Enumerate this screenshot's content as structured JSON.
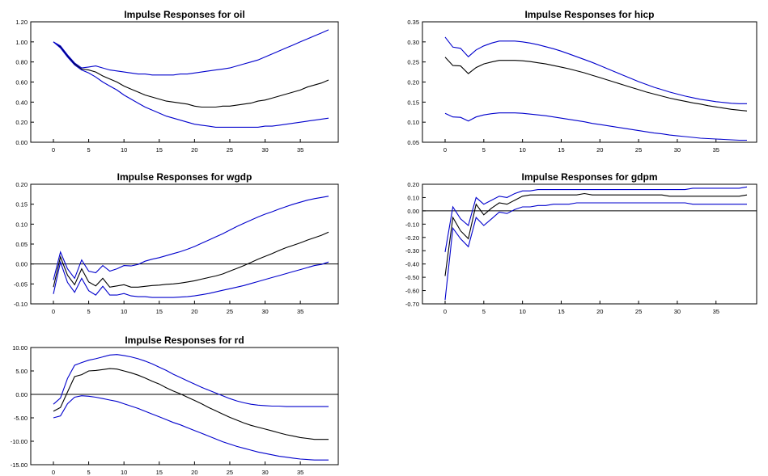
{
  "colors": {
    "point": "#000000",
    "band": "#0000cc",
    "axis": "#000000",
    "zero_line": "#000000"
  },
  "chart_data": [
    {
      "type": "line",
      "title": "Impulse Responses for oil",
      "ylim": [
        0.0,
        1.2
      ],
      "yticks": [
        "0.00",
        "0.20",
        "0.40",
        "0.60",
        "0.80",
        "1.00",
        "1.20"
      ],
      "xlim": [
        0,
        39
      ],
      "xticks": [
        "0",
        "5",
        "10",
        "15",
        "20",
        "25",
        "30",
        "35"
      ],
      "zero_line": false,
      "series": [
        {
          "role": "point",
          "values": [
            1.0,
            0.95,
            0.86,
            0.78,
            0.73,
            0.72,
            0.7,
            0.66,
            0.63,
            0.6,
            0.56,
            0.53,
            0.5,
            0.47,
            0.45,
            0.43,
            0.41,
            0.4,
            0.39,
            0.38,
            0.36,
            0.35,
            0.35,
            0.35,
            0.36,
            0.36,
            0.37,
            0.38,
            0.39,
            0.41,
            0.42,
            0.44,
            0.46,
            0.48,
            0.5,
            0.52,
            0.55,
            0.57,
            0.59,
            0.62
          ]
        },
        {
          "role": "upper",
          "values": [
            1.0,
            0.96,
            0.87,
            0.79,
            0.74,
            0.75,
            0.76,
            0.74,
            0.72,
            0.71,
            0.7,
            0.69,
            0.68,
            0.68,
            0.67,
            0.67,
            0.67,
            0.67,
            0.68,
            0.68,
            0.69,
            0.7,
            0.71,
            0.72,
            0.73,
            0.74,
            0.76,
            0.78,
            0.8,
            0.82,
            0.85,
            0.88,
            0.91,
            0.94,
            0.97,
            1.0,
            1.03,
            1.06,
            1.09,
            1.12
          ]
        },
        {
          "role": "lower",
          "values": [
            1.0,
            0.94,
            0.85,
            0.77,
            0.72,
            0.69,
            0.65,
            0.6,
            0.56,
            0.52,
            0.47,
            0.43,
            0.39,
            0.35,
            0.32,
            0.29,
            0.26,
            0.24,
            0.22,
            0.2,
            0.18,
            0.17,
            0.16,
            0.15,
            0.15,
            0.15,
            0.15,
            0.15,
            0.15,
            0.15,
            0.16,
            0.16,
            0.17,
            0.18,
            0.19,
            0.2,
            0.21,
            0.22,
            0.23,
            0.24
          ]
        }
      ]
    },
    {
      "type": "line",
      "title": "Impulse Responses for hicp",
      "ylim": [
        0.05,
        0.35
      ],
      "yticks": [
        "0.05",
        "0.10",
        "0.15",
        "0.20",
        "0.25",
        "0.30",
        "0.35"
      ],
      "xlim": [
        0,
        39
      ],
      "xticks": [
        "0",
        "5",
        "10",
        "15",
        "20",
        "25",
        "30",
        "35"
      ],
      "zero_line": false,
      "series": [
        {
          "role": "point",
          "values": [
            0.262,
            0.241,
            0.24,
            0.221,
            0.236,
            0.245,
            0.25,
            0.254,
            0.254,
            0.254,
            0.253,
            0.251,
            0.248,
            0.245,
            0.241,
            0.237,
            0.233,
            0.228,
            0.223,
            0.217,
            0.211,
            0.205,
            0.199,
            0.193,
            0.187,
            0.181,
            0.175,
            0.17,
            0.165,
            0.16,
            0.156,
            0.152,
            0.148,
            0.145,
            0.141,
            0.138,
            0.135,
            0.132,
            0.13,
            0.128
          ]
        },
        {
          "role": "upper",
          "values": [
            0.312,
            0.287,
            0.284,
            0.263,
            0.28,
            0.29,
            0.297,
            0.302,
            0.302,
            0.302,
            0.3,
            0.297,
            0.293,
            0.288,
            0.283,
            0.277,
            0.27,
            0.263,
            0.256,
            0.249,
            0.241,
            0.233,
            0.225,
            0.217,
            0.209,
            0.201,
            0.194,
            0.187,
            0.181,
            0.175,
            0.17,
            0.165,
            0.161,
            0.157,
            0.154,
            0.151,
            0.149,
            0.147,
            0.146,
            0.146
          ]
        },
        {
          "role": "lower",
          "values": [
            0.122,
            0.113,
            0.112,
            0.103,
            0.113,
            0.118,
            0.121,
            0.123,
            0.123,
            0.123,
            0.122,
            0.12,
            0.118,
            0.116,
            0.113,
            0.11,
            0.107,
            0.104,
            0.101,
            0.097,
            0.094,
            0.091,
            0.088,
            0.085,
            0.082,
            0.079,
            0.076,
            0.073,
            0.071,
            0.068,
            0.066,
            0.064,
            0.062,
            0.06,
            0.059,
            0.058,
            0.057,
            0.056,
            0.055,
            0.055
          ]
        }
      ]
    },
    {
      "type": "line",
      "title": "Impulse Responses for wgdp",
      "ylim": [
        -0.1,
        0.2
      ],
      "yticks": [
        "-0.10",
        "-0.05",
        "0.00",
        "0.05",
        "0.10",
        "0.15",
        "0.20"
      ],
      "xlim": [
        0,
        39
      ],
      "xticks": [
        "0",
        "5",
        "10",
        "15",
        "20",
        "25",
        "30",
        "35"
      ],
      "zero_line": true,
      "series": [
        {
          "role": "point",
          "values": [
            -0.058,
            0.018,
            -0.028,
            -0.052,
            -0.012,
            -0.045,
            -0.055,
            -0.036,
            -0.058,
            -0.055,
            -0.052,
            -0.058,
            -0.058,
            -0.056,
            -0.054,
            -0.053,
            -0.051,
            -0.05,
            -0.048,
            -0.045,
            -0.042,
            -0.038,
            -0.034,
            -0.03,
            -0.025,
            -0.018,
            -0.011,
            -0.004,
            0.004,
            0.012,
            0.019,
            0.026,
            0.034,
            0.041,
            0.047,
            0.053,
            0.06,
            0.066,
            0.072,
            0.08
          ]
        },
        {
          "role": "upper",
          "values": [
            -0.04,
            0.03,
            -0.012,
            -0.036,
            0.01,
            -0.018,
            -0.022,
            -0.004,
            -0.018,
            -0.012,
            -0.004,
            -0.005,
            -0.001,
            0.007,
            0.012,
            0.016,
            0.021,
            0.026,
            0.031,
            0.037,
            0.044,
            0.052,
            0.06,
            0.068,
            0.076,
            0.085,
            0.094,
            0.102,
            0.11,
            0.118,
            0.125,
            0.131,
            0.138,
            0.144,
            0.15,
            0.155,
            0.16,
            0.164,
            0.167,
            0.17
          ]
        },
        {
          "role": "lower",
          "values": [
            -0.075,
            0.005,
            -0.046,
            -0.071,
            -0.036,
            -0.067,
            -0.078,
            -0.056,
            -0.078,
            -0.078,
            -0.074,
            -0.08,
            -0.082,
            -0.082,
            -0.084,
            -0.084,
            -0.084,
            -0.084,
            -0.083,
            -0.082,
            -0.08,
            -0.077,
            -0.074,
            -0.07,
            -0.066,
            -0.062,
            -0.058,
            -0.054,
            -0.049,
            -0.044,
            -0.039,
            -0.034,
            -0.029,
            -0.024,
            -0.019,
            -0.014,
            -0.009,
            -0.004,
            -0.001,
            0.005
          ]
        }
      ]
    },
    {
      "type": "line",
      "title": "Impulse Responses for gdpm",
      "ylim": [
        -0.7,
        0.2
      ],
      "yticks": [
        "-0.70",
        "-0.60",
        "-0.50",
        "-0.40",
        "-0.30",
        "-0.20",
        "-0.10",
        "0.00",
        "0.10",
        "0.20"
      ],
      "xlim": [
        0,
        39
      ],
      "xticks": [
        "0",
        "5",
        "10",
        "15",
        "20",
        "25",
        "30",
        "35"
      ],
      "zero_line": true,
      "series": [
        {
          "role": "point",
          "values": [
            -0.49,
            -0.05,
            -0.15,
            -0.21,
            0.05,
            -0.03,
            0.02,
            0.06,
            0.05,
            0.08,
            0.11,
            0.12,
            0.12,
            0.12,
            0.12,
            0.12,
            0.12,
            0.12,
            0.13,
            0.12,
            0.12,
            0.12,
            0.12,
            0.12,
            0.12,
            0.12,
            0.12,
            0.12,
            0.12,
            0.11,
            0.11,
            0.11,
            0.11,
            0.11,
            0.11,
            0.11,
            0.11,
            0.11,
            0.11,
            0.12
          ]
        },
        {
          "role": "upper",
          "values": [
            -0.31,
            0.03,
            -0.06,
            -0.11,
            0.1,
            0.05,
            0.08,
            0.11,
            0.1,
            0.13,
            0.15,
            0.15,
            0.16,
            0.16,
            0.16,
            0.16,
            0.16,
            0.16,
            0.16,
            0.16,
            0.16,
            0.16,
            0.16,
            0.16,
            0.16,
            0.16,
            0.16,
            0.16,
            0.16,
            0.16,
            0.16,
            0.16,
            0.17,
            0.17,
            0.17,
            0.17,
            0.17,
            0.17,
            0.17,
            0.18
          ]
        },
        {
          "role": "lower",
          "values": [
            -0.67,
            -0.13,
            -0.21,
            -0.27,
            -0.05,
            -0.11,
            -0.06,
            -0.01,
            -0.02,
            0.01,
            0.03,
            0.03,
            0.04,
            0.04,
            0.05,
            0.05,
            0.05,
            0.06,
            0.06,
            0.06,
            0.06,
            0.06,
            0.06,
            0.06,
            0.06,
            0.06,
            0.06,
            0.06,
            0.06,
            0.06,
            0.06,
            0.06,
            0.05,
            0.05,
            0.05,
            0.05,
            0.05,
            0.05,
            0.05,
            0.05
          ]
        }
      ]
    },
    {
      "type": "line",
      "title": "Impulse Responses for rd",
      "ylim": [
        -15.0,
        10.0
      ],
      "yticks": [
        "-15.00",
        "-10.00",
        "-5.00",
        "0.00",
        "5.00",
        "10.00"
      ],
      "xlim": [
        0,
        39
      ],
      "xticks": [
        "0",
        "5",
        "10",
        "15",
        "20",
        "25",
        "30",
        "35"
      ],
      "zero_line": true,
      "series": [
        {
          "role": "point",
          "values": [
            -3.6,
            -2.8,
            0.5,
            3.8,
            4.2,
            5.0,
            5.1,
            5.3,
            5.5,
            5.4,
            5.0,
            4.6,
            4.1,
            3.5,
            2.8,
            2.2,
            1.4,
            0.7,
            0.1,
            -0.6,
            -1.3,
            -2.0,
            -2.8,
            -3.5,
            -4.2,
            -4.9,
            -5.5,
            -6.1,
            -6.6,
            -7.0,
            -7.4,
            -7.8,
            -8.2,
            -8.6,
            -8.9,
            -9.2,
            -9.4,
            -9.6,
            -9.6,
            -9.6
          ]
        },
        {
          "role": "upper",
          "values": [
            -2.1,
            -0.8,
            3.4,
            6.2,
            6.8,
            7.3,
            7.6,
            8.0,
            8.4,
            8.5,
            8.3,
            8.0,
            7.6,
            7.1,
            6.5,
            5.8,
            5.1,
            4.3,
            3.6,
            2.9,
            2.2,
            1.5,
            0.9,
            0.3,
            -0.3,
            -0.9,
            -1.4,
            -1.8,
            -2.1,
            -2.3,
            -2.4,
            -2.5,
            -2.5,
            -2.6,
            -2.6,
            -2.6,
            -2.6,
            -2.6,
            -2.6,
            -2.6
          ]
        },
        {
          "role": "lower",
          "values": [
            -5.0,
            -4.6,
            -2.0,
            -0.6,
            -0.3,
            -0.4,
            -0.6,
            -0.9,
            -1.2,
            -1.5,
            -2.0,
            -2.5,
            -3.0,
            -3.6,
            -4.2,
            -4.8,
            -5.4,
            -6.0,
            -6.5,
            -7.1,
            -7.7,
            -8.3,
            -8.9,
            -9.5,
            -10.1,
            -10.6,
            -11.1,
            -11.5,
            -11.9,
            -12.3,
            -12.6,
            -12.9,
            -13.2,
            -13.4,
            -13.6,
            -13.8,
            -13.9,
            -14.0,
            -14.0,
            -14.0
          ]
        }
      ]
    }
  ]
}
